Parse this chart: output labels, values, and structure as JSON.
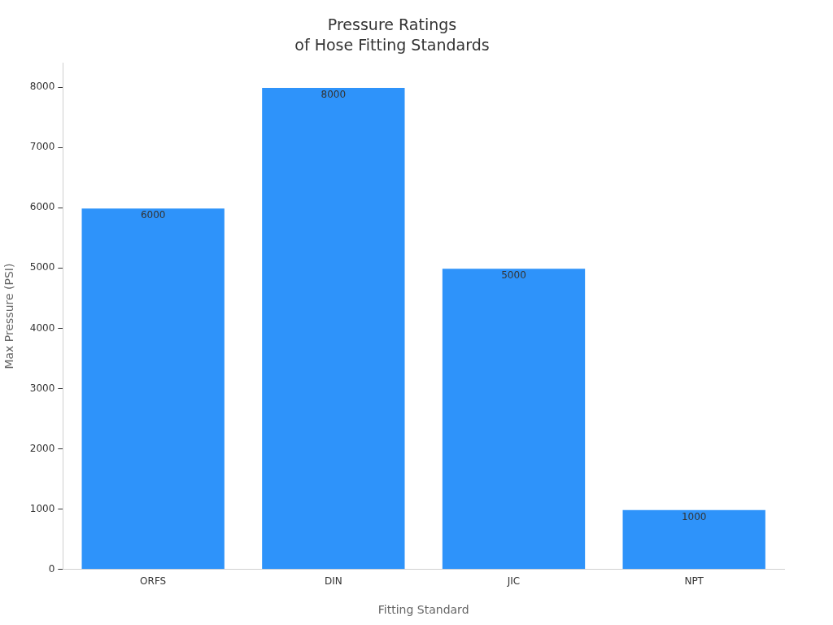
{
  "chart_data": {
    "type": "bar",
    "title": "Pressure Ratings\nof Hose Fitting Standards",
    "xlabel": "Fitting Standard",
    "ylabel": "Max Pressure (PSI)",
    "categories": [
      "ORFS",
      "DIN",
      "JIC",
      "NPT"
    ],
    "values": [
      6000,
      8000,
      5000,
      1000
    ],
    "color": "#2e93fa",
    "ylim": [
      0,
      8400
    ],
    "yticks": [
      0,
      1000,
      2000,
      3000,
      4000,
      5000,
      6000,
      7000,
      8000
    ],
    "grid": false,
    "legend": false,
    "data_labels": true
  }
}
